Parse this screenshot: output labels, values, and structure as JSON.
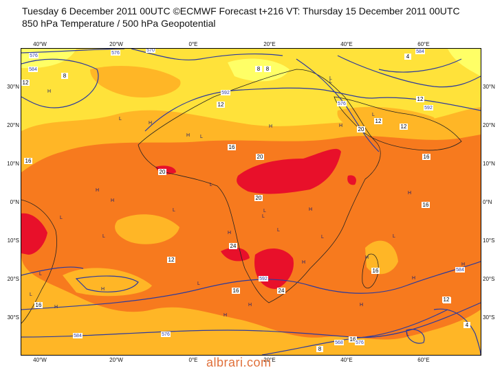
{
  "header": {
    "line1": "Tuesday 6 December 2011 00UTC ©ECMWF Forecast t+216 VT: Thursday 15 December 2011 00UTC",
    "line2": "850 hPa Temperature / 500 hPa Geopotential"
  },
  "axes": {
    "lat_left": [
      "30°N",
      "20°N",
      "10°N",
      "0°N",
      "10°S",
      "20°S",
      "30°S"
    ],
    "lat_right": [
      "30°N",
      "20°N",
      "10°N",
      "0°N",
      "10°S",
      "20°S",
      "30°S"
    ],
    "lon_top": [
      "40°W",
      "20°W",
      "0°E",
      "20°E",
      "40°E",
      "60°E"
    ],
    "lon_bottom": [
      "40°W",
      "20°W",
      "0°E",
      "20°E",
      "40°E",
      "60°E"
    ]
  },
  "temperature_labels": [
    "8",
    "8",
    "12",
    "12",
    "16",
    "20",
    "20",
    "16",
    "12",
    "16",
    "20",
    "24",
    "24",
    "12",
    "16",
    "12",
    "12",
    "16",
    "12",
    "8",
    "4",
    "16",
    "20",
    "12",
    "16",
    "4",
    "8",
    "16"
  ],
  "geopotential_labels": [
    "576",
    "584",
    "576",
    "570",
    "584",
    "592",
    "576",
    "592",
    "584",
    "576",
    "568",
    "576",
    "584",
    "592"
  ],
  "pressure_centers": [
    "H",
    "H",
    "L",
    "H",
    "L",
    "H",
    "L",
    "H",
    "L",
    "L",
    "H",
    "H",
    "L",
    "L",
    "L",
    "H",
    "L",
    "H",
    "H",
    "L",
    "H",
    "L",
    "H",
    "H",
    "H",
    "L",
    "L",
    "H",
    "H",
    "L",
    "L",
    "H",
    "H",
    "L",
    "L",
    "H",
    "L"
  ],
  "colors": {
    "band_4_8": "#ffff66",
    "band_8_12": "#ffe23a",
    "band_12_16": "#ffb626",
    "band_16_20": "#f77a1e",
    "band_20_24": "#e8102a",
    "contour_line": "#2b3a9e",
    "coastline": "#222222",
    "watermark": "#e0703a"
  },
  "watermark": "albrari.com"
}
